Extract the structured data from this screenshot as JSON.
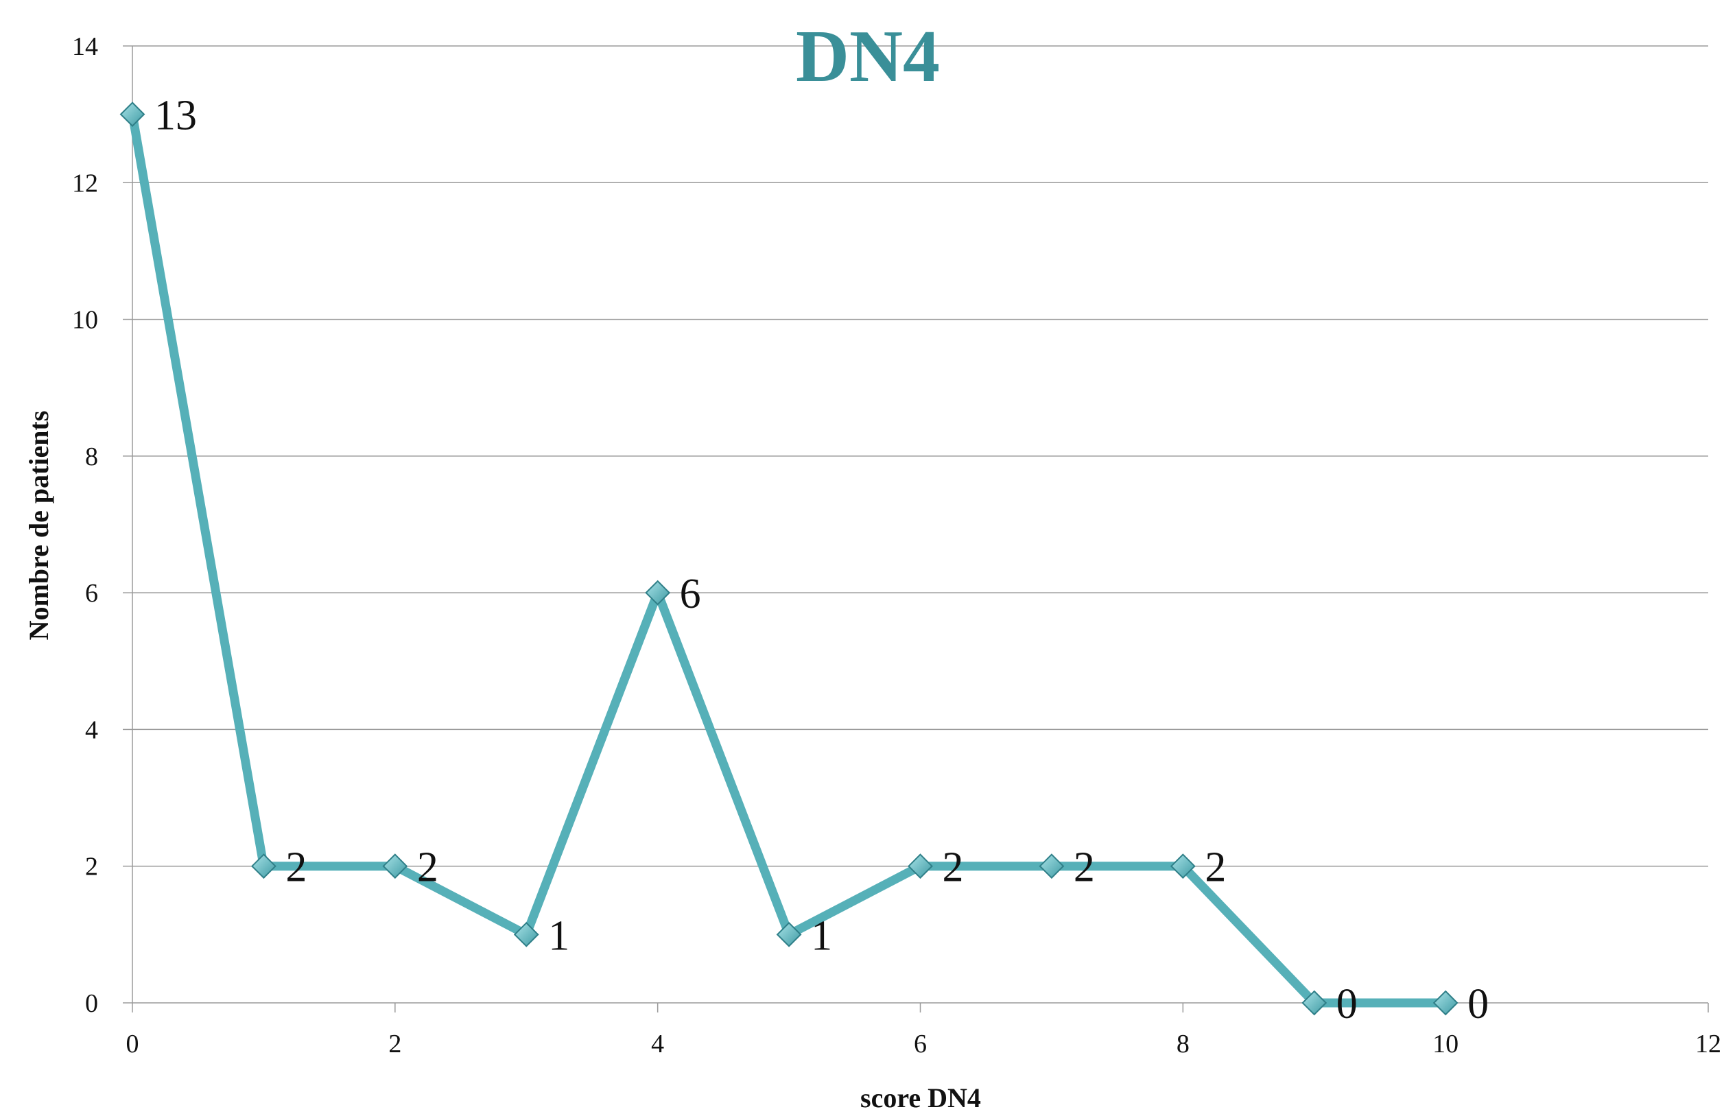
{
  "chart_data": {
    "type": "scatter",
    "title": "DN4",
    "xlabel": "score DN4",
    "ylabel": "Nombre de patients",
    "x": [
      0,
      1,
      2,
      3,
      4,
      5,
      6,
      7,
      8,
      9,
      10
    ],
    "series": [
      {
        "values": [
          13,
          2,
          2,
          1,
          6,
          1,
          2,
          2,
          2,
          0,
          0
        ],
        "color": "#56b0b8"
      }
    ],
    "xlim": [
      0,
      12
    ],
    "ylim": [
      0,
      14
    ],
    "xticks": [
      "0",
      "2",
      "4",
      "6",
      "8",
      "10",
      "12"
    ],
    "yticks": [
      "0",
      "2",
      "4",
      "6",
      "8",
      "10",
      "12",
      "14"
    ],
    "grid": "horizontal",
    "legend": "none",
    "marker": "diamond",
    "title_color": "#3a8f98"
  }
}
